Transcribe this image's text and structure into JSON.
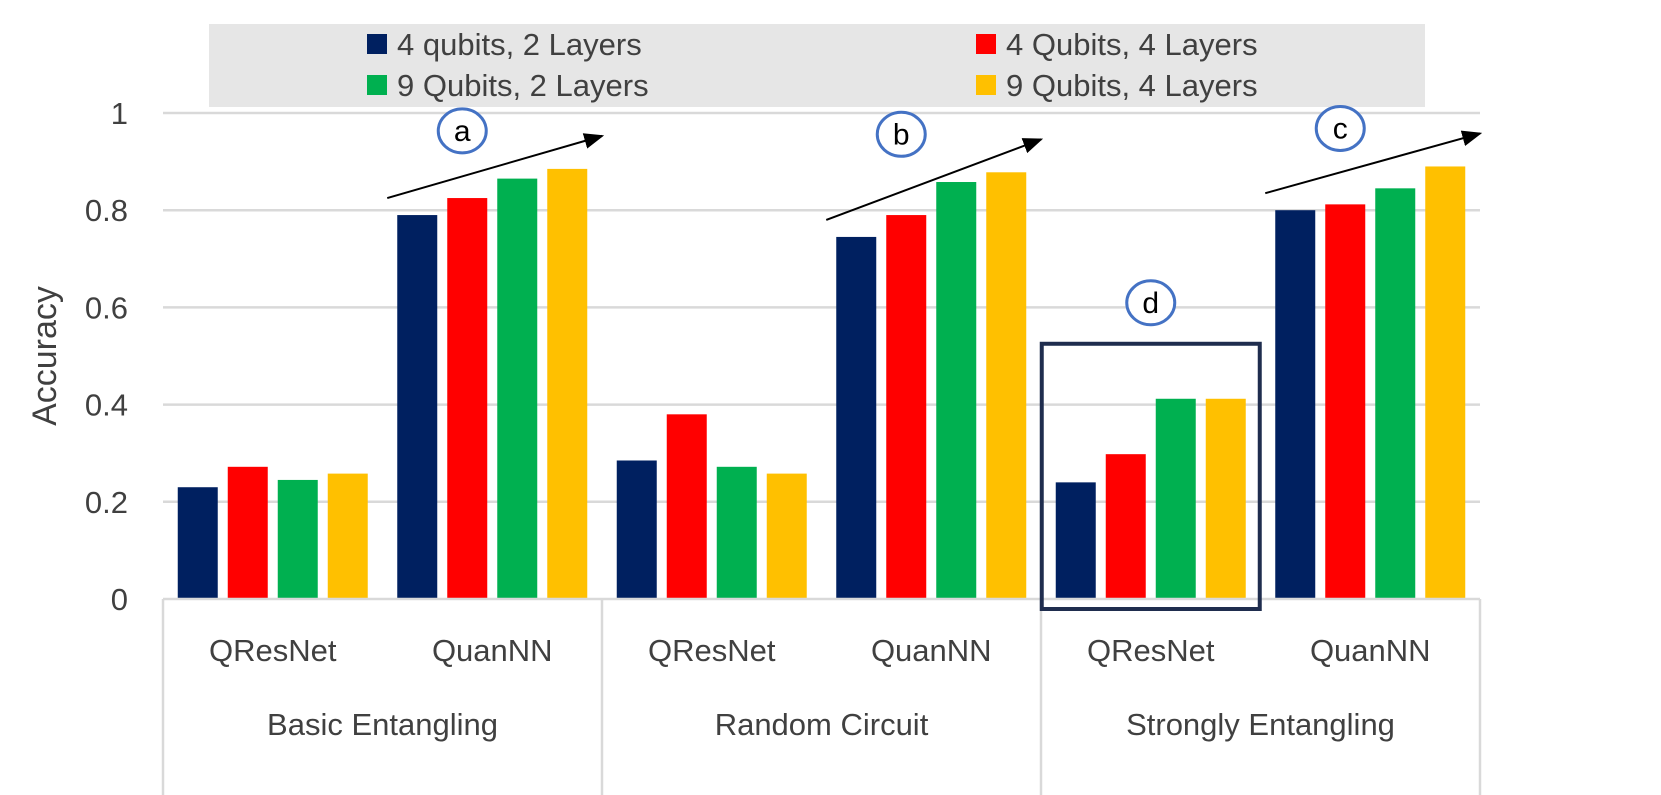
{
  "colors": {
    "series": [
      "#002060",
      "#FF0000",
      "#00B050",
      "#FFC000"
    ],
    "legend_bg": "#E6E6E6",
    "gridline": "#D9D9D9",
    "axis_text": "#404040",
    "annotation_circle": "#4472C4",
    "highlight_box": "#1F2D4E"
  },
  "chart_data": {
    "type": "bar",
    "title": "",
    "xlabel": "",
    "ylabel": "Accuracy",
    "ylim": [
      0,
      1
    ],
    "yticks": [
      "0",
      "0.2",
      "0.4",
      "0.6",
      "0.8",
      "1"
    ],
    "grid": true,
    "legend_position": "top",
    "groups": [
      "Basic Entangling",
      "Random Circuit",
      "Strongly Entangling"
    ],
    "categories": [
      "QResNet",
      "QuanNN",
      "QResNet",
      "QuanNN",
      "QResNet",
      "QuanNN"
    ],
    "series": [
      {
        "name": "4 qubits, 2 Layers",
        "values": [
          0.23,
          0.79,
          0.285,
          0.745,
          0.24,
          0.8
        ]
      },
      {
        "name": "4 Qubits, 4 Layers",
        "values": [
          0.272,
          0.825,
          0.38,
          0.79,
          0.298,
          0.812
        ]
      },
      {
        "name": "9 Qubits, 2 Layers",
        "values": [
          0.245,
          0.865,
          0.272,
          0.858,
          0.412,
          0.845
        ]
      },
      {
        "name": "9 Qubits, 4 Layers",
        "values": [
          0.258,
          0.885,
          0.258,
          0.878,
          0.412,
          0.89
        ]
      }
    ],
    "annotations": [
      {
        "label": "a",
        "category_index": 1,
        "kind": "trend-arrow"
      },
      {
        "label": "b",
        "category_index": 3,
        "kind": "trend-arrow"
      },
      {
        "label": "c",
        "category_index": 5,
        "kind": "trend-arrow"
      },
      {
        "label": "d",
        "category_index": 4,
        "kind": "highlight-box"
      }
    ]
  }
}
